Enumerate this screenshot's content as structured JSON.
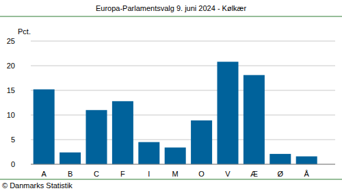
{
  "chart_data": {
    "type": "bar",
    "title": "Europa-Parlamentsvalg 9. juni 2024 - Kølkær",
    "y_label": "Pct.",
    "source": "© Danmarks Statistik",
    "categories": [
      "A",
      "B",
      "C",
      "F",
      "I",
      "M",
      "O",
      "V",
      "Æ",
      "Ø",
      "Å"
    ],
    "values": [
      15.2,
      2.4,
      11.0,
      12.8,
      4.5,
      3.4,
      8.9,
      20.8,
      18.1,
      2.1,
      1.6
    ],
    "color": "#00629b",
    "ylim": [
      0,
      25
    ],
    "yticks": [
      0,
      5,
      10,
      15,
      20,
      25
    ],
    "grid": true
  }
}
